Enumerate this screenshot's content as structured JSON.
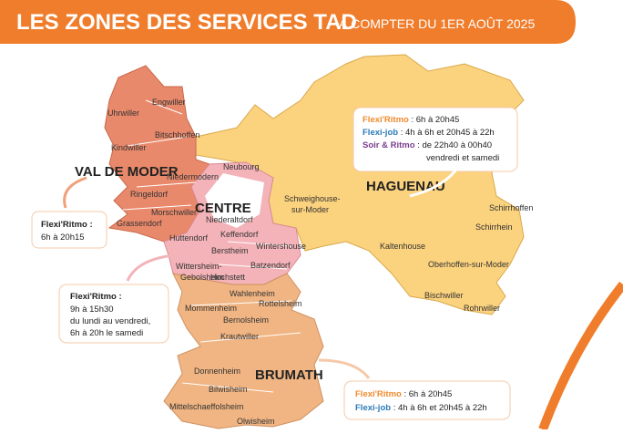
{
  "header": {
    "title": "LES ZONES DES SERVICES TAD",
    "subtitle": "À COMPTER DU 1ER AOÛT 2025"
  },
  "zones": {
    "val_de_moder": "VAL DE MODER",
    "centre": "CENTRE",
    "haguenau": "HAGUENAU",
    "brumath": "BRUMATH"
  },
  "towns": [
    "Engwiller",
    "Uhrwiller",
    "Bitschhoffen",
    "Kindwiller",
    "Neubourg",
    "Niedermodern",
    "Ringeldorf",
    [
      "Schweighouse-",
      "sur-Moder"
    ],
    "Morschwiller",
    "Niederaltdorf",
    "Grassendorf",
    "Keffendorf",
    "Huttendorf",
    "Wintershouse",
    "Berstheim",
    [
      "Wittersheim-",
      "Gebolsheim"
    ],
    "Batzendorf",
    "Hochstett",
    "Wahlenheim",
    "Rottelsheim",
    "Mommenheim",
    "Bernolsheim",
    "Krautwiller",
    "Donnenheim",
    "Bilwisheim",
    "Mittelschaeffolsheim",
    "Olwisheim",
    "Kaltenhouse",
    "Schirrhoffen",
    "Schirrhein",
    "Oberhoffen-sur-Moder",
    "Bischwiller",
    "Rohrwiller"
  ],
  "boxes": {
    "haguenau": [
      {
        "service": "Flexi'Ritmo",
        "hours": ": 6h à 20h45"
      },
      {
        "service": "Flexi-job",
        "hours": ": 4h à 6h et 20h45 à 22h"
      },
      {
        "service": "Soir & Ritmo",
        "hours": ": de 22h40 à 00h40"
      },
      {
        "hours": "vendredi et samedi"
      }
    ],
    "val_de_moder": {
      "service": "Flexi'Ritmo :",
      "lines": [
        "6h à 20h15"
      ]
    },
    "centre": {
      "service": "Flexi'Ritmo :",
      "lines": [
        "9h à 15h30",
        "du lundi au vendredi,",
        "6h à 20h le samedi"
      ]
    },
    "brumath": [
      {
        "service": "Flexi'Ritmo",
        "hours": ": 6h à 20h45"
      },
      {
        "service": "Flexi-job",
        "hours": ": 4h à 6h et 20h45 à 22h"
      }
    ]
  }
}
